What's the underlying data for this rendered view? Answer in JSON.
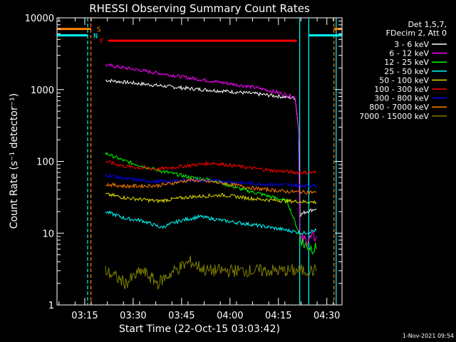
{
  "chart_data": {
    "type": "line",
    "title": "RHESSI Observing Summary Count Rates",
    "xlabel": "Start Time (22-Oct-15 03:03:42)",
    "ylabel": "Count Rate (s⁻¹ detector⁻¹)",
    "yscale": "log",
    "ylim": [
      1,
      10000
    ],
    "xlim_minutes": [
      3.7,
      92
    ],
    "x_ticks": [
      {
        "minute": 12.3,
        "label": "03:15"
      },
      {
        "minute": 27.3,
        "label": "03:30"
      },
      {
        "minute": 42.3,
        "label": "03:45"
      },
      {
        "minute": 57.3,
        "label": "04:00"
      },
      {
        "minute": 72.3,
        "label": "04:15"
      },
      {
        "minute": 87.3,
        "label": "04:30"
      }
    ],
    "y_ticks": [
      {
        "value": 1,
        "label": "1"
      },
      {
        "value": 10,
        "label": "10"
      },
      {
        "value": 100,
        "label": "100"
      },
      {
        "value": 1000,
        "label": "1000"
      },
      {
        "value": 10000,
        "label": "10000"
      }
    ],
    "legend_header": [
      "Det 1,5,7,",
      "FDecim 2, Att 0"
    ],
    "series": [
      {
        "name": "3 - 6 keV",
        "color": "#ffffff",
        "x": [
          18.7,
          30,
          45,
          60,
          70,
          77.5,
          78.5,
          79,
          81,
          84
        ],
        "y": [
          1350,
          1200,
          1030,
          920,
          830,
          760,
          300,
          18,
          20,
          22
        ]
      },
      {
        "name": "6 - 12 keV",
        "color": "#ff00ff",
        "x": [
          18.7,
          25,
          35,
          45,
          55,
          65,
          72,
          77.5,
          78.5,
          79,
          81,
          84
        ],
        "y": [
          2200,
          2000,
          1700,
          1450,
          1250,
          1070,
          920,
          780,
          300,
          8,
          8,
          9
        ]
      },
      {
        "name": "12 - 25 keV",
        "color": "#00ff00",
        "x": [
          18.7,
          25,
          35,
          45,
          52,
          60,
          68,
          75,
          80,
          84
        ],
        "y": [
          130,
          100,
          75,
          60,
          55,
          42,
          34,
          28,
          7,
          6
        ]
      },
      {
        "name": "25 - 50 keV",
        "color": "#00ffff",
        "x": [
          18.7,
          25,
          30,
          36,
          42,
          48,
          55,
          65,
          75,
          80,
          84
        ],
        "y": [
          20,
          16,
          15,
          12,
          15,
          17,
          15,
          13,
          11,
          10,
          11
        ]
      },
      {
        "name": "50 - 100 keV",
        "color": "#dddd00",
        "x": [
          18.7,
          25,
          35,
          45,
          55,
          65,
          75,
          84
        ],
        "y": [
          35,
          31,
          28,
          32,
          34,
          30,
          28,
          27
        ]
      },
      {
        "name": "100 - 300 keV",
        "color": "#ff0000",
        "x": [
          18.7,
          25,
          35,
          45,
          52,
          60,
          70,
          78,
          84
        ],
        "y": [
          100,
          85,
          78,
          88,
          95,
          85,
          75,
          70,
          70
        ]
      },
      {
        "name": "300 - 800 keV",
        "color": "#0000ff",
        "x": [
          18.7,
          25,
          35,
          45,
          55,
          65,
          75,
          84
        ],
        "y": [
          65,
          57,
          52,
          55,
          53,
          49,
          47,
          46
        ]
      },
      {
        "name": "800 - 7000 keV",
        "color": "#ff8000",
        "x": [
          18.7,
          25,
          35,
          45,
          55,
          65,
          75,
          84
        ],
        "y": [
          48,
          45,
          46,
          55,
          50,
          42,
          38,
          37
        ]
      },
      {
        "name": "7000 - 15000 keV",
        "color": "#808000",
        "x": [
          18.7,
          25,
          30,
          35,
          40,
          45,
          50,
          55,
          60,
          65,
          70,
          75,
          80,
          84
        ],
        "y": [
          3,
          2,
          3,
          2,
          3,
          4,
          3,
          3,
          3,
          3,
          3,
          3,
          3,
          3
        ]
      }
    ],
    "state_flags": [
      {
        "label": "S",
        "color": "#ff8000",
        "level": 7000,
        "segments": [
          [
            3.7,
            14.2
          ],
          [
            89.5,
            92
          ]
        ]
      },
      {
        "label": "N",
        "color": "#00ffff",
        "level": 5700,
        "segments": [
          [
            3.7,
            13.2
          ],
          [
            81.7,
            92
          ]
        ]
      },
      {
        "label": "F",
        "color": "#ff0000",
        "level": 4800,
        "segments": [
          [
            19.5,
            78
          ]
        ]
      }
    ],
    "vertical_markers": [
      {
        "minute": 13.2,
        "color": "#00ffff",
        "dashed": true
      },
      {
        "minute": 14.2,
        "color": "#ff8000",
        "dashed": true
      },
      {
        "minute": 78.9,
        "color": "#00ffff",
        "dashed": false
      },
      {
        "minute": 81.7,
        "color": "#00ffff",
        "dashed": false
      },
      {
        "minute": 89.5,
        "color": "#ff8000",
        "dashed": true
      },
      {
        "minute": 90.2,
        "color": "#00ffff",
        "dashed": false
      }
    ]
  },
  "footer": {
    "timestamp": "1-Nov-2021 09:54"
  }
}
